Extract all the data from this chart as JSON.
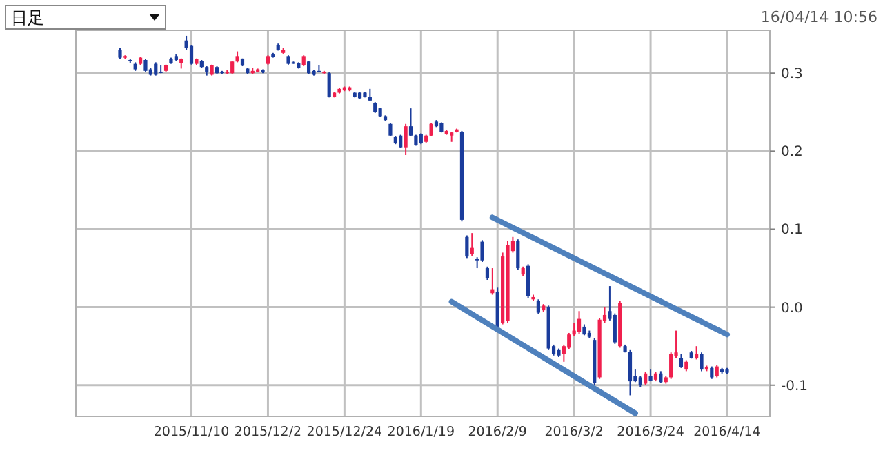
{
  "chart_data": {
    "type": "candlestick",
    "annotations": [
      "日足",
      "16/04/14 10:56"
    ],
    "categories": [
      null,
      null,
      null,
      null,
      null,
      null,
      null,
      null,
      null,
      null,
      null,
      null,
      null,
      null,
      "2015/11/10",
      null,
      null,
      null,
      null,
      null,
      null,
      null,
      null,
      null,
      null,
      null,
      null,
      null,
      null,
      "2015/12/2",
      null,
      null,
      null,
      null,
      null,
      null,
      null,
      null,
      null,
      null,
      null,
      null,
      null,
      null,
      "2015/12/24",
      null,
      null,
      null,
      null,
      null,
      null,
      null,
      null,
      null,
      null,
      null,
      null,
      null,
      null,
      "2016/1/19",
      null,
      null,
      null,
      null,
      null,
      null,
      null,
      null,
      null,
      null,
      null,
      null,
      null,
      null,
      "2016/2/9",
      null,
      null,
      null,
      null,
      null,
      null,
      null,
      null,
      null,
      null,
      null,
      null,
      null,
      null,
      "2016/3/2",
      null,
      null,
      null,
      null,
      null,
      null,
      null,
      null,
      null,
      null,
      null,
      null,
      null,
      null,
      "2016/3/24",
      null,
      null,
      null,
      null,
      null,
      null,
      null,
      null,
      null,
      null,
      null,
      null,
      null,
      null,
      "2016/4/14"
    ],
    "ohlc": [
      [
        0.33,
        0.332,
        0.318,
        0.32
      ],
      [
        0.32,
        0.323,
        0.318,
        0.322
      ],
      [
        0.317,
        0.318,
        0.313,
        0.316
      ],
      [
        0.312,
        0.314,
        0.303,
        0.305
      ],
      [
        0.312,
        0.321,
        0.31,
        0.32
      ],
      [
        0.317,
        0.318,
        0.302,
        0.303
      ],
      [
        0.305,
        0.307,
        0.297,
        0.298
      ],
      [
        0.312,
        0.314,
        0.297,
        0.298
      ],
      [
        0.302,
        0.31,
        0.3,
        0.301
      ],
      [
        0.303,
        0.311,
        0.302,
        0.31
      ],
      [
        0.318,
        0.32,
        0.312,
        0.313
      ],
      [
        0.322,
        0.324,
        0.316,
        0.317
      ],
      [
        0.313,
        0.319,
        0.306,
        0.318
      ],
      [
        0.342,
        0.348,
        0.33,
        0.332
      ],
      [
        0.335,
        0.336,
        0.311,
        0.312
      ],
      [
        0.312,
        0.319,
        0.31,
        0.318
      ],
      [
        0.316,
        0.317,
        0.307,
        0.308
      ],
      [
        0.308,
        0.309,
        0.297,
        0.302
      ],
      [
        0.298,
        0.311,
        0.297,
        0.31
      ],
      [
        0.308,
        0.309,
        0.299,
        0.3
      ],
      [
        0.302,
        0.303,
        0.299,
        0.301
      ],
      [
        0.3,
        0.304,
        0.299,
        0.302
      ],
      [
        0.3,
        0.316,
        0.299,
        0.315
      ],
      [
        0.315,
        0.328,
        0.314,
        0.322
      ],
      [
        0.318,
        0.319,
        0.309,
        0.31
      ],
      [
        0.306,
        0.307,
        0.299,
        0.3
      ],
      [
        0.3,
        0.307,
        0.299,
        0.303
      ],
      [
        0.302,
        0.306,
        0.301,
        0.305
      ],
      [
        0.304,
        0.305,
        0.3,
        0.301
      ],
      [
        0.312,
        0.323,
        0.311,
        0.322
      ],
      [
        0.324,
        0.326,
        0.32,
        0.321
      ],
      [
        0.336,
        0.338,
        0.329,
        0.33
      ],
      [
        0.326,
        0.332,
        0.325,
        0.33
      ],
      [
        0.322,
        0.323,
        0.311,
        0.312
      ],
      [
        0.314,
        0.315,
        0.312,
        0.313
      ],
      [
        0.313,
        0.314,
        0.306,
        0.307
      ],
      [
        0.31,
        0.323,
        0.309,
        0.322
      ],
      [
        0.315,
        0.316,
        0.299,
        0.3
      ],
      [
        0.303,
        0.304,
        0.297,
        0.298
      ],
      [
        0.303,
        0.31,
        0.301,
        0.302
      ],
      [
        0.3,
        0.303,
        0.299,
        0.302
      ],
      [
        0.3,
        0.301,
        0.269,
        0.27
      ],
      [
        0.27,
        0.276,
        0.269,
        0.275
      ],
      [
        0.275,
        0.281,
        0.274,
        0.28
      ],
      [
        0.278,
        0.283,
        0.277,
        0.282
      ],
      [
        0.278,
        0.283,
        0.277,
        0.282
      ],
      [
        0.275,
        0.276,
        0.269,
        0.27
      ],
      [
        0.275,
        0.276,
        0.267,
        0.268
      ],
      [
        0.275,
        0.276,
        0.269,
        0.27
      ],
      [
        0.27,
        0.28,
        0.264,
        0.265
      ],
      [
        0.262,
        0.263,
        0.249,
        0.25
      ],
      [
        0.255,
        0.256,
        0.244,
        0.245
      ],
      [
        0.245,
        0.246,
        0.239,
        0.24
      ],
      [
        0.235,
        0.236,
        0.219,
        0.22
      ],
      [
        0.218,
        0.219,
        0.209,
        0.21
      ],
      [
        0.22,
        0.221,
        0.204,
        0.205
      ],
      [
        0.205,
        0.235,
        0.195,
        0.232
      ],
      [
        0.232,
        0.255,
        0.219,
        0.22
      ],
      [
        0.22,
        0.221,
        0.207,
        0.208
      ],
      [
        0.222,
        0.223,
        0.209,
        0.21
      ],
      [
        0.212,
        0.221,
        0.211,
        0.22
      ],
      [
        0.22,
        0.236,
        0.219,
        0.235
      ],
      [
        0.238,
        0.24,
        0.231,
        0.232
      ],
      [
        0.236,
        0.237,
        0.224,
        0.225
      ],
      [
        0.222,
        0.227,
        0.221,
        0.226
      ],
      [
        0.22,
        0.225,
        0.212,
        0.224
      ],
      [
        0.225,
        0.229,
        0.224,
        0.228
      ],
      [
        0.225,
        0.226,
        0.11,
        0.112
      ],
      [
        0.09,
        0.092,
        0.063,
        0.065
      ],
      [
        0.068,
        0.095,
        0.066,
        0.076
      ],
      [
        0.062,
        0.064,
        0.05,
        0.06
      ],
      [
        0.084,
        0.086,
        0.058,
        0.06
      ],
      [
        0.05,
        0.052,
        0.035,
        0.037
      ],
      [
        0.018,
        0.05,
        0.016,
        0.023
      ],
      [
        0.02,
        0.025,
        -0.027,
        -0.025
      ],
      [
        -0.02,
        0.07,
        -0.022,
        0.065
      ],
      [
        -0.018,
        0.085,
        -0.02,
        0.08
      ],
      [
        0.072,
        0.09,
        0.07,
        0.085
      ],
      [
        0.085,
        0.087,
        0.048,
        0.05
      ],
      [
        0.042,
        0.052,
        0.04,
        0.05
      ],
      [
        0.053,
        0.055,
        0.012,
        0.014
      ],
      [
        0.01,
        0.016,
        0.008,
        0.013
      ],
      [
        0.008,
        0.01,
        -0.009,
        -0.007
      ],
      [
        -0.004,
        0.004,
        -0.006,
        0.002
      ],
      [
        0,
        0.002,
        -0.055,
        -0.053
      ],
      [
        -0.05,
        -0.048,
        -0.062,
        -0.06
      ],
      [
        -0.055,
        -0.053,
        -0.064,
        -0.062
      ],
      [
        -0.06,
        -0.048,
        -0.07,
        -0.05
      ],
      [
        -0.052,
        -0.033,
        -0.054,
        -0.035
      ],
      [
        -0.035,
        -0.02,
        -0.037,
        -0.03
      ],
      [
        -0.032,
        -0.005,
        -0.034,
        -0.015
      ],
      [
        -0.025,
        -0.022,
        -0.036,
        -0.035
      ],
      [
        -0.033,
        -0.03,
        -0.04,
        -0.038
      ],
      [
        -0.042,
        -0.04,
        -0.1,
        -0.097
      ],
      [
        -0.09,
        -0.014,
        -0.092,
        -0.016
      ],
      [
        -0.018,
        0,
        -0.02,
        -0.01
      ],
      [
        -0.005,
        0.027,
        -0.017,
        -0.015
      ],
      [
        -0.01,
        -0.008,
        -0.047,
        -0.045
      ],
      [
        -0.05,
        0.008,
        -0.052,
        0.005
      ],
      [
        -0.05,
        -0.048,
        -0.058,
        -0.057
      ],
      [
        -0.057,
        -0.055,
        -0.113,
        -0.095
      ],
      [
        -0.088,
        -0.08,
        -0.096,
        -0.095
      ],
      [
        -0.09,
        -0.088,
        -0.102,
        -0.1
      ],
      [
        -0.098,
        -0.083,
        -0.1,
        -0.085
      ],
      [
        -0.088,
        -0.08,
        -0.095,
        -0.094
      ],
      [
        -0.093,
        -0.083,
        -0.095,
        -0.085
      ],
      [
        -0.085,
        -0.082,
        -0.097,
        -0.096
      ],
      [
        -0.096,
        -0.088,
        -0.098,
        -0.09
      ],
      [
        -0.09,
        -0.058,
        -0.092,
        -0.06
      ],
      [
        -0.063,
        -0.03,
        -0.065,
        -0.058
      ],
      [
        -0.065,
        -0.06,
        -0.078,
        -0.077
      ],
      [
        -0.08,
        -0.068,
        -0.082,
        -0.07
      ],
      [
        -0.058,
        -0.056,
        -0.066,
        -0.065
      ],
      [
        -0.065,
        -0.05,
        -0.067,
        -0.06
      ],
      [
        -0.06,
        -0.058,
        -0.082,
        -0.08
      ],
      [
        -0.08,
        -0.075,
        -0.082,
        -0.077
      ],
      [
        -0.078,
        -0.076,
        -0.092,
        -0.09
      ],
      [
        -0.088,
        -0.074,
        -0.09,
        -0.076
      ],
      [
        -0.08,
        -0.078,
        -0.085,
        -0.083
      ],
      [
        -0.08,
        -0.078,
        -0.086,
        -0.084
      ]
    ],
    "colors": [
      "#1a3c9c",
      "#f0204e",
      "#1a3c9c",
      "#1a3c9c",
      "#f0204e",
      "#1a3c9c",
      "#1a3c9c",
      "#1a3c9c",
      "#1a3c9c",
      "#f0204e",
      "#1a3c9c",
      "#1a3c9c",
      "#f0204e",
      "#1a3c9c",
      "#1a3c9c",
      "#f0204e",
      "#1a3c9c",
      "#1a3c9c",
      "#f0204e",
      "#1a3c9c",
      "#1a3c9c",
      "#f0204e",
      "#f0204e",
      "#f0204e",
      "#1a3c9c",
      "#1a3c9c",
      "#f0204e",
      "#f0204e",
      "#1a3c9c",
      "#f0204e",
      "#1a3c9c",
      "#1a3c9c",
      "#f0204e",
      "#1a3c9c",
      "#1a3c9c",
      "#1a3c9c",
      "#f0204e",
      "#1a3c9c",
      "#1a3c9c",
      "#1a3c9c",
      "#f0204e",
      "#1a3c9c",
      "#f0204e",
      "#f0204e",
      "#f0204e",
      "#f0204e",
      "#1a3c9c",
      "#1a3c9c",
      "#1a3c9c",
      "#1a3c9c",
      "#1a3c9c",
      "#1a3c9c",
      "#1a3c9c",
      "#1a3c9c",
      "#1a3c9c",
      "#1a3c9c",
      "#f0204e",
      "#1a3c9c",
      "#1a3c9c",
      "#1a3c9c",
      "#f0204e",
      "#f0204e",
      "#1a3c9c",
      "#1a3c9c",
      "#f0204e",
      "#f0204e",
      "#f0204e",
      "#1a3c9c",
      "#1a3c9c",
      "#f0204e",
      "#1a3c9c",
      "#1a3c9c",
      "#1a3c9c",
      "#f0204e",
      "#1a3c9c",
      "#f0204e",
      "#f0204e",
      "#f0204e",
      "#1a3c9c",
      "#f0204e",
      "#1a3c9c",
      "#f0204e",
      "#1a3c9c",
      "#f0204e",
      "#1a3c9c",
      "#1a3c9c",
      "#1a3c9c",
      "#f0204e",
      "#f0204e",
      "#f0204e",
      "#f0204e",
      "#1a3c9c",
      "#1a3c9c",
      "#1a3c9c",
      "#f0204e",
      "#f0204e",
      "#1a3c9c",
      "#1a3c9c",
      "#f0204e",
      "#1a3c9c",
      "#1a3c9c",
      "#1a3c9c",
      "#1a3c9c",
      "#f0204e",
      "#1a3c9c",
      "#f0204e",
      "#1a3c9c",
      "#f0204e",
      "#f0204e",
      "#f0204e",
      "#1a3c9c",
      "#f0204e",
      "#1a3c9c",
      "#f0204e",
      "#1a3c9c",
      "#f0204e",
      "#1a3c9c",
      "#f0204e",
      "#1a3c9c",
      "#1a3c9c"
    ],
    "series": [
      {
        "type": "line",
        "color": "#4f81bd",
        "values": [
          null,
          null,
          null,
          null,
          null,
          null,
          null,
          null,
          null,
          null,
          null,
          null,
          null,
          null,
          null,
          null,
          null,
          null,
          null,
          null,
          null,
          null,
          null,
          null,
          null,
          null,
          null,
          null,
          null,
          null,
          null,
          null,
          null,
          null,
          null,
          null,
          null,
          null,
          null,
          null,
          null,
          null,
          null,
          null,
          null,
          null,
          null,
          null,
          null,
          null,
          null,
          null,
          null,
          null,
          null,
          null,
          null,
          null,
          null,
          null,
          null,
          null,
          null,
          null,
          null,
          null,
          null,
          null,
          null,
          null,
          null,
          null,
          null,
          0.115,
          null,
          null,
          null,
          null,
          null,
          null,
          null,
          null,
          null,
          null,
          null,
          null,
          null,
          null,
          null,
          null,
          null,
          null,
          null,
          null,
          null,
          null,
          null,
          null,
          null,
          null,
          null,
          null,
          null,
          null,
          null,
          null,
          null,
          null,
          null,
          null,
          null,
          null,
          null,
          null,
          null,
          null,
          null,
          null,
          null,
          -0.035
        ]
      },
      {
        "type": "line",
        "color": "#4f81bd",
        "values": [
          null,
          null,
          null,
          null,
          null,
          null,
          null,
          null,
          null,
          null,
          null,
          null,
          null,
          null,
          null,
          null,
          null,
          null,
          null,
          null,
          null,
          null,
          null,
          null,
          null,
          null,
          null,
          null,
          null,
          null,
          null,
          null,
          null,
          null,
          null,
          null,
          null,
          null,
          null,
          null,
          null,
          null,
          null,
          null,
          null,
          null,
          null,
          null,
          null,
          null,
          null,
          null,
          null,
          null,
          null,
          null,
          null,
          null,
          null,
          null,
          null,
          null,
          null,
          null,
          null,
          0.007,
          null,
          null,
          null,
          null,
          null,
          null,
          null,
          null,
          null,
          null,
          null,
          null,
          null,
          null,
          null,
          null,
          null,
          null,
          null,
          null,
          null,
          null,
          null,
          null,
          null,
          null,
          null,
          null,
          null,
          null,
          null,
          null,
          null,
          null,
          null,
          -0.136,
          null,
          null,
          null,
          null,
          null,
          null,
          null,
          null,
          null,
          null,
          null,
          null,
          null,
          null,
          null,
          null,
          null,
          null
        ]
      }
    ],
    "ylim": [
      -0.14,
      0.355
    ],
    "yticks": [
      -0.1,
      {
        "value": 0,
        "label": "0.0"
      },
      0.1,
      0.2,
      0.3
    ],
    "grid": true
  }
}
